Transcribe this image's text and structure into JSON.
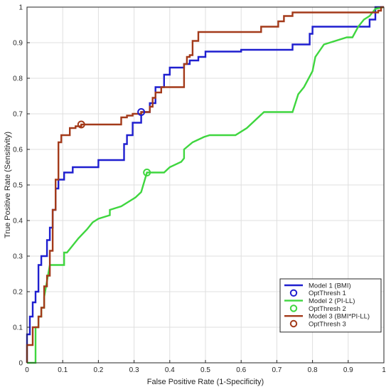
{
  "chart_data": {
    "type": "line",
    "title": "",
    "xlabel": "False Positive Rate (1-Specificity)",
    "ylabel": "True Positive Rate (Sensitivity)",
    "xlim": [
      0,
      1
    ],
    "ylim": [
      0,
      1
    ],
    "xticks": [
      "0",
      "0.1",
      "0.2",
      "0.3",
      "0.4",
      "0.5",
      "0.6",
      "0.7",
      "0.8",
      "0.9",
      "1"
    ],
    "yticks": [
      "0",
      "0.1",
      "0.2",
      "0.3",
      "0.4",
      "0.5",
      "0.6",
      "0.7",
      "0.8",
      "0.9",
      "1"
    ],
    "grid": true,
    "legend_position": "lower-right",
    "series": [
      {
        "name": "Model 1 (BMI)",
        "color": "#1f1fcf",
        "x": [
          0,
          0,
          0.008,
          0.008,
          0.016,
          0.016,
          0.024,
          0.024,
          0.032,
          0.032,
          0.04,
          0.04,
          0.056,
          0.056,
          0.064,
          0.064,
          0.072,
          0.072,
          0.08,
          0.08,
          0.088,
          0.088,
          0.104,
          0.104,
          0.128,
          0.128,
          0.2,
          0.2,
          0.272,
          0.272,
          0.28,
          0.28,
          0.296,
          0.296,
          0.32,
          0.32,
          0.344,
          0.344,
          0.36,
          0.36,
          0.384,
          0.384,
          0.4,
          0.4,
          0.44,
          0.44,
          0.456,
          0.456,
          0.48,
          0.48,
          0.5,
          0.5,
          0.6,
          0.6,
          0.744,
          0.744,
          0.792,
          0.792,
          0.8,
          0.8,
          0.96,
          0.96,
          0.976,
          0.976,
          1
        ],
        "y": [
          0,
          0.08,
          0.08,
          0.13,
          0.13,
          0.17,
          0.17,
          0.2,
          0.2,
          0.275,
          0.275,
          0.3,
          0.3,
          0.345,
          0.345,
          0.38,
          0.38,
          0.43,
          0.43,
          0.49,
          0.49,
          0.515,
          0.515,
          0.535,
          0.535,
          0.55,
          0.55,
          0.57,
          0.57,
          0.615,
          0.615,
          0.64,
          0.64,
          0.675,
          0.675,
          0.705,
          0.705,
          0.73,
          0.73,
          0.775,
          0.775,
          0.81,
          0.81,
          0.83,
          0.83,
          0.84,
          0.84,
          0.85,
          0.85,
          0.86,
          0.86,
          0.875,
          0.875,
          0.88,
          0.88,
          0.895,
          0.895,
          0.925,
          0.925,
          0.945,
          0.945,
          0.965,
          0.965,
          1,
          1
        ]
      },
      {
        "name": "Model 2 (PI-LL)",
        "color": "#3fd63f",
        "x": [
          0,
          0.024,
          0.024,
          0.032,
          0.032,
          0.04,
          0.04,
          0.048,
          0.048,
          0.056,
          0.064,
          0.064,
          0.104,
          0.104,
          0.112,
          0.128,
          0.144,
          0.168,
          0.184,
          0.2,
          0.232,
          0.232,
          0.248,
          0.264,
          0.28,
          0.304,
          0.32,
          0.32,
          0.336,
          0.336,
          0.384,
          0.4,
          0.432,
          0.44,
          0.44,
          0.464,
          0.496,
          0.512,
          0.584,
          0.616,
          0.664,
          0.68,
          0.744,
          0.76,
          0.776,
          0.784,
          0.8,
          0.808,
          0.832,
          0.896,
          0.912,
          0.928,
          0.944,
          0.96,
          0.976,
          1
        ],
        "y": [
          0,
          0,
          0.1,
          0.1,
          0.13,
          0.13,
          0.155,
          0.155,
          0.185,
          0.23,
          0.275,
          0.275,
          0.275,
          0.31,
          0.31,
          0.33,
          0.35,
          0.375,
          0.395,
          0.405,
          0.415,
          0.43,
          0.435,
          0.44,
          0.45,
          0.465,
          0.48,
          0.48,
          0.535,
          0.535,
          0.535,
          0.55,
          0.565,
          0.575,
          0.6,
          0.62,
          0.635,
          0.64,
          0.64,
          0.66,
          0.705,
          0.705,
          0.705,
          0.755,
          0.775,
          0.79,
          0.82,
          0.86,
          0.895,
          0.915,
          0.915,
          0.945,
          0.965,
          0.975,
          0.995,
          1
        ]
      },
      {
        "name": "Model 3 (BMI*PI-LL)",
        "color": "#a33a1a",
        "x": [
          0,
          0,
          0.016,
          0.016,
          0.032,
          0.032,
          0.04,
          0.04,
          0.048,
          0.048,
          0.056,
          0.056,
          0.064,
          0.064,
          0.072,
          0.072,
          0.08,
          0.08,
          0.088,
          0.088,
          0.096,
          0.096,
          0.12,
          0.12,
          0.136,
          0.136,
          0.152,
          0.152,
          0.264,
          0.264,
          0.28,
          0.28,
          0.296,
          0.296,
          0.32,
          0.32,
          0.344,
          0.344,
          0.352,
          0.352,
          0.36,
          0.36,
          0.376,
          0.376,
          0.4,
          0.4,
          0.44,
          0.44,
          0.448,
          0.448,
          0.456,
          0.456,
          0.464,
          0.464,
          0.48,
          0.48,
          0.656,
          0.656,
          0.704,
          0.704,
          0.72,
          0.72,
          0.744,
          0.744,
          0.984,
          0.984,
          0.992,
          0.992,
          1
        ],
        "y": [
          0,
          0.05,
          0.05,
          0.1,
          0.1,
          0.13,
          0.13,
          0.155,
          0.155,
          0.215,
          0.215,
          0.245,
          0.245,
          0.315,
          0.315,
          0.43,
          0.43,
          0.515,
          0.515,
          0.62,
          0.62,
          0.64,
          0.64,
          0.66,
          0.66,
          0.665,
          0.665,
          0.67,
          0.67,
          0.69,
          0.69,
          0.695,
          0.695,
          0.7,
          0.7,
          0.705,
          0.705,
          0.72,
          0.72,
          0.745,
          0.745,
          0.76,
          0.76,
          0.775,
          0.775,
          0.775,
          0.775,
          0.84,
          0.84,
          0.86,
          0.86,
          0.865,
          0.865,
          0.905,
          0.905,
          0.93,
          0.93,
          0.945,
          0.945,
          0.96,
          0.96,
          0.975,
          0.975,
          0.985,
          0.985,
          0.99,
          0.99,
          1,
          1
        ]
      }
    ],
    "points": [
      {
        "name": "OptThresh 1",
        "color": "#1f1fcf",
        "x": 0.32,
        "y": 0.705
      },
      {
        "name": "OptThresh 2",
        "color": "#3fd63f",
        "x": 0.336,
        "y": 0.535
      },
      {
        "name": "OptThresh 3",
        "color": "#a33a1a",
        "x": 0.152,
        "y": 0.67
      }
    ],
    "legend": [
      {
        "label": "Model 1 (BMI)",
        "kind": "line",
        "color": "#1f1fcf"
      },
      {
        "label": "OptThresh 1",
        "kind": "marker",
        "color": "#1f1fcf"
      },
      {
        "label": "Model 2 (PI-LL)",
        "kind": "line",
        "color": "#3fd63f"
      },
      {
        "label": "OptThresh 2",
        "kind": "marker",
        "color": "#3fd63f"
      },
      {
        "label": "Model 3 (BMI*PI-LL)",
        "kind": "line",
        "color": "#a33a1a"
      },
      {
        "label": "OptThresh 3",
        "kind": "marker",
        "color": "#a33a1a"
      }
    ]
  }
}
